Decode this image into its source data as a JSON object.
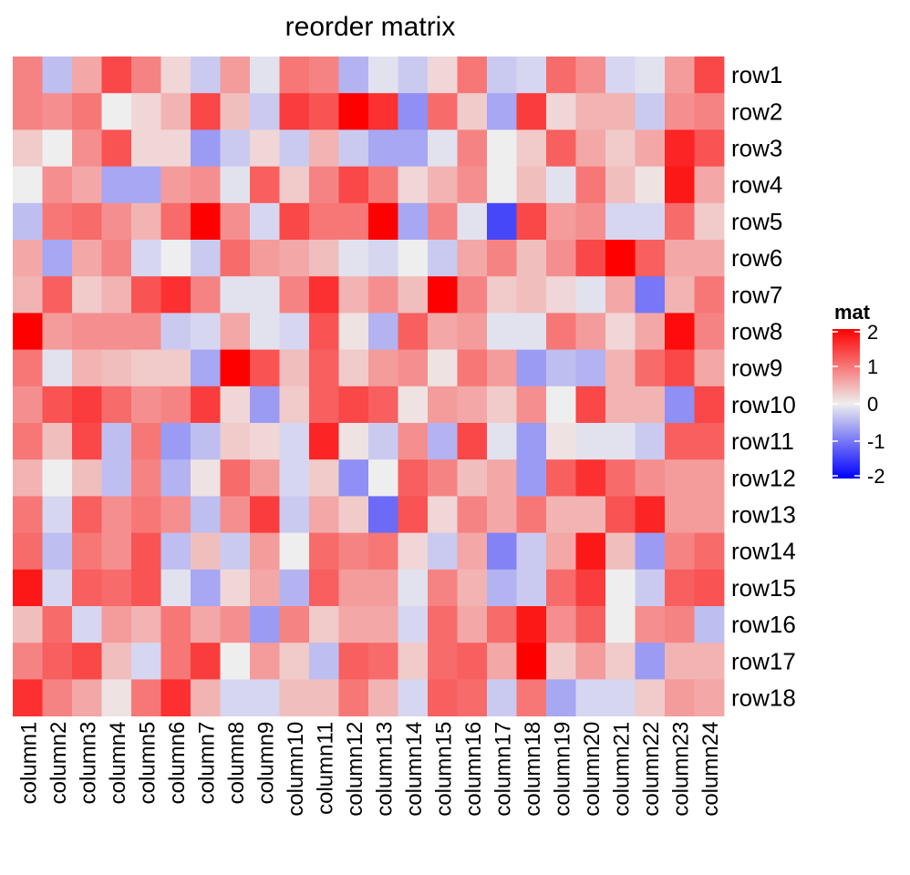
{
  "chart_data": {
    "type": "heatmap",
    "title": "reorder matrix",
    "rows": [
      "row1",
      "row2",
      "row3",
      "row4",
      "row5",
      "row6",
      "row7",
      "row8",
      "row9",
      "row10",
      "row11",
      "row12",
      "row13",
      "row14",
      "row15",
      "row16",
      "row17",
      "row18"
    ],
    "columns": [
      "column1",
      "column2",
      "column3",
      "column4",
      "column5",
      "column6",
      "column7",
      "column8",
      "column9",
      "column10",
      "column11",
      "column12",
      "column13",
      "column14",
      "column15",
      "column16",
      "column17",
      "column18",
      "column19",
      "column20",
      "column21",
      "column22",
      "column23",
      "column24"
    ],
    "values": [
      [
        0.9,
        -0.4,
        0.6,
        1.4,
        0.9,
        0.2,
        -0.3,
        0.7,
        -0.1,
        1.0,
        0.9,
        -0.5,
        -0.1,
        -0.3,
        0.2,
        1.0,
        -0.3,
        -0.2,
        1.1,
        0.8,
        -0.2,
        -0.1,
        0.7,
        1.4
      ],
      [
        0.9,
        0.8,
        1.0,
        0.0,
        0.2,
        0.5,
        1.4,
        0.4,
        -0.3,
        1.5,
        1.3,
        2.2,
        1.6,
        -0.8,
        1.1,
        0.3,
        -0.6,
        1.5,
        0.2,
        0.5,
        0.5,
        -0.3,
        0.8,
        0.9
      ],
      [
        0.3,
        0.0,
        0.8,
        1.3,
        0.2,
        0.2,
        -0.7,
        -0.3,
        0.2,
        -0.3,
        0.5,
        -0.3,
        -0.6,
        -0.6,
        -0.1,
        0.9,
        0.0,
        0.3,
        1.2,
        0.6,
        0.3,
        0.6,
        1.7,
        1.3
      ],
      [
        0.0,
        0.8,
        0.6,
        -0.6,
        -0.6,
        0.7,
        0.8,
        -0.1,
        1.2,
        0.3,
        0.9,
        1.4,
        1.0,
        0.2,
        0.5,
        0.8,
        0.0,
        0.4,
        -0.1,
        1.0,
        0.4,
        0.1,
        1.8,
        0.6
      ],
      [
        -0.4,
        1.0,
        1.1,
        0.8,
        0.5,
        1.1,
        2.2,
        0.8,
        -0.2,
        1.4,
        1.0,
        1.0,
        2.2,
        -0.6,
        0.9,
        -0.1,
        -1.4,
        1.4,
        0.7,
        0.8,
        -0.2,
        -0.2,
        1.1,
        0.3
      ],
      [
        0.6,
        -0.6,
        0.6,
        0.9,
        -0.2,
        0.0,
        -0.3,
        1.1,
        0.7,
        0.6,
        0.4,
        -0.1,
        -0.2,
        0.0,
        -0.3,
        0.6,
        0.9,
        0.4,
        0.8,
        1.4,
        2.0,
        1.2,
        0.6,
        0.6
      ],
      [
        0.5,
        1.2,
        0.3,
        0.5,
        1.3,
        1.6,
        0.9,
        -0.1,
        -0.1,
        0.9,
        1.6,
        0.5,
        0.8,
        0.4,
        2.2,
        0.9,
        0.3,
        0.4,
        0.2,
        -0.1,
        0.6,
        -1.0,
        0.5,
        1.0
      ],
      [
        2.2,
        0.7,
        0.8,
        0.8,
        0.8,
        -0.3,
        -0.2,
        0.6,
        -0.1,
        -0.2,
        1.3,
        0.1,
        -0.5,
        1.2,
        0.6,
        0.7,
        -0.1,
        -0.1,
        1.0,
        0.7,
        0.2,
        0.6,
        1.9,
        0.9
      ],
      [
        1.0,
        -0.1,
        0.5,
        0.4,
        0.3,
        0.3,
        -0.6,
        2.0,
        1.3,
        0.4,
        1.2,
        0.3,
        0.7,
        0.8,
        0.1,
        1.0,
        0.7,
        -0.7,
        -0.4,
        -0.5,
        0.5,
        1.1,
        1.4,
        0.6
      ],
      [
        0.8,
        1.3,
        1.5,
        1.1,
        0.8,
        0.9,
        1.5,
        0.2,
        -0.7,
        0.3,
        1.2,
        1.4,
        1.2,
        0.1,
        0.7,
        0.6,
        0.3,
        0.8,
        0.0,
        1.4,
        0.5,
        0.5,
        -0.8,
        1.4
      ],
      [
        1.0,
        0.4,
        1.4,
        -0.4,
        1.0,
        -0.7,
        -0.4,
        0.3,
        0.2,
        -0.2,
        1.7,
        0.1,
        -0.3,
        0.8,
        -0.5,
        1.4,
        -0.1,
        -0.7,
        0.1,
        -0.1,
        -0.1,
        -0.3,
        1.2,
        1.2
      ],
      [
        0.5,
        0.0,
        0.4,
        -0.4,
        0.9,
        -0.5,
        0.1,
        1.1,
        0.7,
        -0.2,
        0.3,
        -0.8,
        0.0,
        1.2,
        0.9,
        0.4,
        0.6,
        -0.7,
        1.2,
        1.6,
        1.1,
        0.8,
        0.7,
        0.7
      ],
      [
        1.0,
        -0.2,
        1.2,
        0.8,
        1.0,
        0.8,
        -0.4,
        0.8,
        1.5,
        -0.3,
        0.6,
        0.3,
        -1.1,
        1.3,
        0.2,
        0.9,
        0.6,
        1.0,
        0.5,
        0.5,
        1.3,
        1.7,
        0.7,
        0.7
      ],
      [
        1.1,
        -0.4,
        1.0,
        0.8,
        1.3,
        -0.4,
        0.4,
        -0.3,
        0.7,
        0.0,
        1.1,
        0.9,
        1.0,
        0.2,
        -0.3,
        0.6,
        -0.9,
        -0.3,
        0.6,
        1.8,
        0.4,
        -0.7,
        0.9,
        1.1
      ],
      [
        1.8,
        -0.2,
        1.2,
        1.1,
        1.3,
        -0.1,
        -0.6,
        0.2,
        0.6,
        -0.5,
        1.2,
        0.7,
        0.7,
        -0.1,
        0.9,
        0.5,
        -0.5,
        -0.3,
        1.1,
        1.5,
        0.0,
        -0.3,
        1.2,
        1.3
      ],
      [
        0.4,
        1.1,
        -0.2,
        0.7,
        0.5,
        1.0,
        0.6,
        0.8,
        -0.7,
        0.9,
        0.3,
        0.6,
        0.6,
        -0.2,
        1.1,
        0.6,
        1.1,
        1.8,
        0.8,
        1.2,
        0.0,
        0.8,
        0.9,
        -0.4
      ],
      [
        0.9,
        1.2,
        1.4,
        0.4,
        -0.2,
        1.0,
        1.5,
        0.0,
        0.7,
        0.3,
        -0.4,
        1.2,
        1.1,
        0.3,
        1.1,
        1.2,
        0.6,
        2.3,
        0.3,
        0.7,
        0.3,
        -0.7,
        0.5,
        0.5
      ],
      [
        1.6,
        0.9,
        0.6,
        0.1,
        1.0,
        1.6,
        0.5,
        -0.2,
        -0.2,
        0.4,
        0.4,
        1.0,
        0.5,
        -0.2,
        1.2,
        1.1,
        -0.3,
        1.0,
        -0.6,
        -0.2,
        -0.2,
        0.3,
        0.7,
        0.6
      ]
    ],
    "legend": {
      "title": "mat",
      "ticks": [
        2,
        1,
        0,
        -1,
        -2
      ],
      "range": [
        -2,
        2
      ],
      "placement": "right"
    },
    "colors": {
      "low": "#0000FF",
      "mid": "#EEEEEE",
      "high": "#FF0000"
    }
  }
}
